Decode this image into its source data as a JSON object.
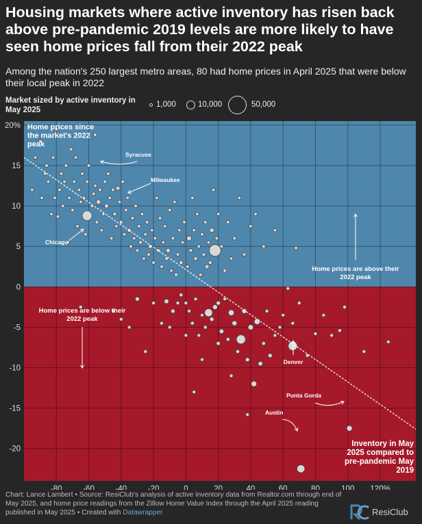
{
  "header": {
    "title": "Housing markets where active inventory has risen back above pre-pandemic 2019 levels are more likely to have seen home prices fall from their 2022 peak",
    "subtitle": "Among the nation's 250 largest metro areas, 80 had home prices in April 2025 that were below their local peak in 2022"
  },
  "legend": {
    "title": "Market sized by active inventory in May 2025",
    "items": [
      {
        "label": "1,000",
        "value": 1000
      },
      {
        "label": "10,000",
        "value": 10000
      },
      {
        "label": "50,000",
        "value": 50000
      }
    ]
  },
  "colors": {
    "background": "#262626",
    "above_peak_region": "#4f86ac",
    "below_peak_region": "#a5192b",
    "bubble_fill": "#d8d8d8",
    "bubble_stroke": "#444444",
    "trendline": "#ffffff"
  },
  "chart_data": {
    "type": "scatter",
    "xlabel": "Inventory in May 2025 compared to pre-pandemic May 2019",
    "ylabel": "Home prices since the market's 2022 peak",
    "xlim": [
      -100,
      142
    ],
    "ylim": [
      -24,
      20.5
    ],
    "x_ticks": [
      -80,
      -60,
      -40,
      -20,
      0,
      20,
      40,
      60,
      80,
      100,
      120
    ],
    "x_tick_labels": [
      "-80",
      "-60",
      "-40",
      "-20",
      "0",
      "20",
      "40",
      "60",
      "80",
      "100",
      "120%"
    ],
    "y_ticks": [
      20,
      15,
      10,
      5,
      0,
      -5,
      -10,
      -15,
      -20
    ],
    "y_tick_labels": [
      "20%",
      "15",
      "10",
      "5",
      "0",
      "-5",
      "-10",
      "-15",
      "-20"
    ],
    "grid": true,
    "trendline": {
      "x": [
        -100,
        142
      ],
      "y": [
        16,
        -17.6
      ]
    },
    "region_annotations": {
      "above": "Home prices are above their 2022 peak",
      "below": "Home prices are below their 2022 peak"
    },
    "labeled_points": [
      {
        "name": "Syracuse",
        "x": -56,
        "y": 18.8,
        "inventory": 600
      },
      {
        "name": "Milwaukee",
        "x": -42,
        "y": 12.2,
        "inventory": 2500
      },
      {
        "name": "Chicago",
        "x": -61,
        "y": 8.8,
        "inventory": 14000
      },
      {
        "name": "Denver",
        "x": 66,
        "y": -7.3,
        "inventory": 12000
      },
      {
        "name": "Punta Gorda",
        "x": 101,
        "y": -17.5,
        "inventory": 4500
      },
      {
        "name": "Austin",
        "x": 71,
        "y": -22.5,
        "inventory": 9000
      }
    ],
    "points": [
      [
        -95,
        12,
        500
      ],
      [
        -93,
        16,
        400
      ],
      [
        -90,
        18,
        500
      ],
      [
        -89,
        11,
        600
      ],
      [
        -87,
        14,
        700
      ],
      [
        -86,
        15,
        400
      ],
      [
        -85,
        13,
        500
      ],
      [
        -83,
        9,
        700
      ],
      [
        -82,
        16,
        800
      ],
      [
        -81,
        11,
        600
      ],
      [
        -80,
        19.5,
        400
      ],
      [
        -79,
        8.7,
        1200
      ],
      [
        -78,
        12,
        900
      ],
      [
        -77,
        14,
        500
      ],
      [
        -76,
        10,
        600
      ],
      [
        -75,
        13,
        800
      ],
      [
        -74,
        15,
        500
      ],
      [
        -73,
        5.5,
        700
      ],
      [
        -72,
        11,
        900
      ],
      [
        -71,
        17,
        400
      ],
      [
        -70,
        9.5,
        1000
      ],
      [
        -69,
        13,
        600
      ],
      [
        -68,
        16,
        500
      ],
      [
        -67,
        7.5,
        700
      ],
      [
        -66,
        12,
        800
      ],
      [
        -65,
        10.5,
        1200
      ],
      [
        -64,
        14,
        600
      ],
      [
        -63,
        11,
        900
      ],
      [
        -62,
        6.5,
        500
      ],
      [
        -61,
        13,
        700
      ],
      [
        -60,
        15,
        800
      ],
      [
        -58,
        10,
        1500
      ],
      [
        -57,
        11.5,
        900
      ],
      [
        -56,
        12.5,
        700
      ],
      [
        -55,
        8,
        1000
      ],
      [
        -54,
        10.5,
        3000
      ],
      [
        -53,
        12,
        1200
      ],
      [
        -52,
        7,
        900
      ],
      [
        -51,
        9,
        1500
      ],
      [
        -50,
        13,
        800
      ],
      [
        -49,
        10,
        2500
      ],
      [
        -48,
        14,
        700
      ],
      [
        -47,
        11,
        1500
      ],
      [
        -46,
        6,
        1200
      ],
      [
        -45,
        12,
        900
      ],
      [
        -44,
        9,
        2000
      ],
      [
        -43,
        7.5,
        1500
      ],
      [
        -41,
        10.5,
        800
      ],
      [
        -40,
        8,
        2200
      ],
      [
        -39,
        13,
        600
      ],
      [
        -38,
        6.5,
        1800
      ],
      [
        -37,
        9.5,
        1200
      ],
      [
        -36,
        11,
        1000
      ],
      [
        -35,
        7,
        2500
      ],
      [
        -34,
        5,
        1500
      ],
      [
        -33,
        8.5,
        900
      ],
      [
        -32,
        6,
        1300
      ],
      [
        -31,
        10,
        800
      ],
      [
        -30,
        4.5,
        1500
      ],
      [
        -29,
        7.5,
        1100
      ],
      [
        -28,
        5.5,
        2000
      ],
      [
        -27,
        9,
        900
      ],
      [
        -26,
        3.5,
        1500
      ],
      [
        -25,
        6.5,
        1200
      ],
      [
        -24,
        8,
        700
      ],
      [
        -23,
        4,
        1800
      ],
      [
        -22,
        5,
        2500
      ],
      [
        -21,
        7,
        1000
      ],
      [
        -20,
        3,
        1600
      ],
      [
        -19,
        6,
        1300
      ],
      [
        -18,
        11,
        600
      ],
      [
        -17,
        4.5,
        2200
      ],
      [
        -16,
        8.5,
        900
      ],
      [
        -15,
        2.5,
        1800
      ],
      [
        -14,
        5.5,
        1400
      ],
      [
        -13,
        7.5,
        1000
      ],
      [
        -12,
        3.5,
        2000
      ],
      [
        -11,
        4.5,
        2800
      ],
      [
        -10,
        9.5,
        700
      ],
      [
        -9,
        2,
        1500
      ],
      [
        -8,
        6,
        1300
      ],
      [
        -7,
        10.5,
        800
      ],
      [
        -6,
        1.5,
        2000
      ],
      [
        -5,
        4,
        1600
      ],
      [
        -4,
        7,
        1100
      ],
      [
        -3,
        3,
        2200
      ],
      [
        -2,
        5.5,
        1300
      ],
      [
        -1,
        8,
        900
      ],
      [
        1,
        2.5,
        1800
      ],
      [
        2,
        6,
        3500
      ],
      [
        3,
        4.5,
        2000
      ],
      [
        4,
        11,
        700
      ],
      [
        5,
        7,
        1300
      ],
      [
        6,
        3.5,
        2200
      ],
      [
        7,
        9,
        900
      ],
      [
        8,
        5,
        1600
      ],
      [
        9,
        1.5,
        1400
      ],
      [
        10,
        6.5,
        1100
      ],
      [
        11,
        4,
        1800
      ],
      [
        12,
        8,
        1200
      ],
      [
        13,
        2.5,
        2500
      ],
      [
        14,
        5.5,
        1000
      ],
      [
        15,
        3,
        2000
      ],
      [
        16,
        7,
        3000
      ],
      [
        17,
        12,
        600
      ],
      [
        18,
        4.5,
        20000
      ],
      [
        19,
        6,
        1500
      ],
      [
        20,
        9,
        800
      ],
      [
        22,
        5,
        1300
      ],
      [
        24,
        2,
        1800
      ],
      [
        26,
        8,
        700
      ],
      [
        28,
        3.5,
        1200
      ],
      [
        30,
        6,
        900
      ],
      [
        33,
        11,
        600
      ],
      [
        36,
        4,
        1000
      ],
      [
        40,
        7.5,
        800
      ],
      [
        43,
        9,
        600
      ],
      [
        48,
        5,
        700
      ],
      [
        55,
        7,
        1000
      ],
      [
        68,
        4.8,
        700
      ],
      [
        -65,
        -2.5,
        500
      ],
      [
        -45,
        -3,
        900
      ],
      [
        -40,
        -4,
        1500
      ],
      [
        -35,
        -5,
        700
      ],
      [
        -30,
        -1.5,
        2500
      ],
      [
        -25,
        -8,
        600
      ],
      [
        -20,
        -2,
        1200
      ],
      [
        -15,
        -4.5,
        800
      ],
      [
        -12,
        -1.8,
        3000
      ],
      [
        -8,
        -3,
        2500
      ],
      [
        -5,
        -2,
        1800
      ],
      [
        -3,
        -1,
        2000
      ],
      [
        0,
        -2,
        1200
      ],
      [
        2,
        -3,
        1500
      ],
      [
        4,
        -4.5,
        2000
      ],
      [
        6,
        -1.5,
        1000
      ],
      [
        8,
        -6,
        1300
      ],
      [
        10,
        -3.5,
        1600
      ],
      [
        12,
        -5,
        1800
      ],
      [
        14,
        -3.2,
        9000
      ],
      [
        16,
        -4,
        2500
      ],
      [
        18,
        -2.5,
        3500
      ],
      [
        20,
        -7,
        2200
      ],
      [
        22,
        -5.5,
        3000
      ],
      [
        24,
        -1.5,
        1500
      ],
      [
        26,
        -6.5,
        2000
      ],
      [
        28,
        -3.2,
        5000
      ],
      [
        30,
        -4.5,
        3500
      ],
      [
        32,
        -8,
        2000
      ],
      [
        34,
        -6.5,
        12000
      ],
      [
        36,
        -3,
        3500
      ],
      [
        38,
        -9,
        2500
      ],
      [
        40,
        -5,
        4000
      ],
      [
        42,
        -12,
        4500
      ],
      [
        44,
        -4.3,
        5000
      ],
      [
        46,
        -9.5,
        3000
      ],
      [
        48,
        -7,
        2000
      ],
      [
        50,
        -3,
        1500
      ],
      [
        52,
        -8.5,
        2500
      ],
      [
        55,
        -6,
        1800
      ],
      [
        58,
        -5,
        1500
      ],
      [
        60,
        -3.5,
        1300
      ],
      [
        63,
        -0.2,
        700
      ],
      [
        66,
        -4.5,
        900
      ],
      [
        70,
        -2,
        1800
      ],
      [
        75,
        -8.5,
        1400
      ],
      [
        80,
        -5.8,
        1300
      ],
      [
        85,
        -3.5,
        700
      ],
      [
        90,
        -6,
        1000
      ],
      [
        95,
        -5.4,
        1500
      ],
      [
        98,
        -2.5,
        800
      ],
      [
        110,
        -8,
        700
      ],
      [
        125,
        -6.8,
        900
      ],
      [
        5,
        -13,
        600
      ],
      [
        38,
        -15.8,
        1200
      ],
      [
        28,
        -11,
        1500
      ],
      [
        10,
        -9,
        1200
      ],
      [
        0,
        -6,
        900
      ],
      [
        -10,
        -5,
        1000
      ],
      [
        20,
        -2,
        2500
      ]
    ]
  },
  "footer": {
    "credit": "Chart: Lance Lambert • Source: ResiClub's analysis of active inventory data from Realtor.com through end of May 2025, and home price readings from the Zillow Home Value Index through the April 2025 reading published in May 2025 • Created with",
    "tool": "Datawrapper",
    "brand": "ResiClub"
  }
}
